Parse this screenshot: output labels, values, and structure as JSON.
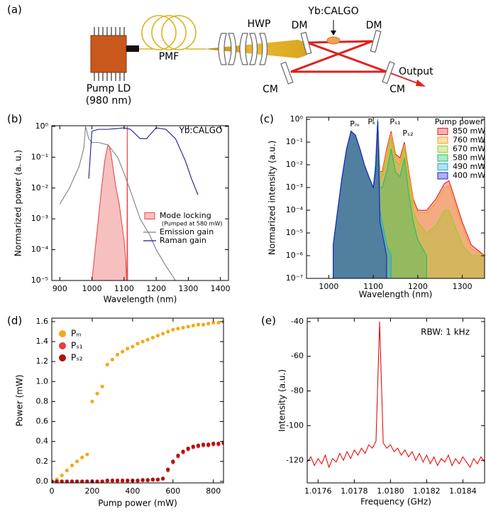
{
  "diagram": {
    "labels": [
      "(a)",
      "Pump LD",
      "(980 nm)",
      "PMF",
      "HWP",
      "DM",
      "Yb:CALGO",
      "DM",
      "CM",
      "CM",
      "Output"
    ]
  },
  "chart_data": [
    {
      "type": "line",
      "label": "(b)",
      "x_label": "Wavelength (nm)",
      "y_label": "Normarized power (a. u.)",
      "ylog": true,
      "xlim": [
        875,
        1425
      ],
      "ylim": [
        1e-05,
        1.05
      ],
      "xticks": [
        900,
        1000,
        1100,
        1200,
        1300,
        1400
      ],
      "yticks": [
        {
          "value": 1e-05,
          "label": "10⁻⁵"
        },
        {
          "value": 0.0001,
          "label": "10⁻⁴"
        },
        {
          "value": 0.001,
          "label": "10⁻³"
        },
        {
          "value": 0.01,
          "label": "10⁻²"
        },
        {
          "value": 0.1,
          "label": "10⁻¹"
        },
        {
          "value": 1,
          "label": "10⁰"
        }
      ],
      "annotations": [
        "Yb:CALGO"
      ],
      "series": [
        {
          "name": "Mode locking",
          "note": "(Pumped at 580 mW)",
          "style": "area",
          "color": "#e84a4a",
          "x": [
            1000,
            1010,
            1020,
            1030,
            1040,
            1050,
            1055,
            1060,
            1065,
            1075,
            1085,
            1095,
            1100,
            1105,
            1108,
            1109,
            1110,
            1111,
            1112
          ],
          "values": [
            1e-05,
            0.0001,
            0.001,
            0.01,
            0.08,
            0.25,
            0.22,
            0.12,
            0.05,
            0.01,
            0.003,
            0.0005,
            0.0002,
            5e-05,
            1e-05,
            1e-05,
            1,
            1e-05,
            1e-05
          ]
        },
        {
          "name": "Emission gain",
          "style": "line",
          "color": "#808080",
          "x": [
            900,
            930,
            960,
            975,
            980,
            990,
            1000,
            1020,
            1050,
            1080,
            1100,
            1120,
            1150,
            1180,
            1200,
            1230,
            1260
          ],
          "values": [
            0.003,
            0.01,
            0.05,
            0.2,
            1,
            0.4,
            0.3,
            0.3,
            0.25,
            0.1,
            0.03,
            0.008,
            0.001,
            0.0003,
            0.0001,
            3e-05,
            1e-05
          ]
        },
        {
          "name": "Raman gain",
          "style": "line",
          "color": "#1a1a9c",
          "x": [
            990,
            1000,
            1020,
            1050,
            1080,
            1100,
            1120,
            1150,
            1170,
            1200,
            1230,
            1260,
            1290,
            1310,
            1330
          ],
          "values": [
            0.02,
            0.7,
            0.8,
            0.8,
            0.85,
            0.9,
            0.8,
            0.4,
            0.4,
            0.9,
            0.8,
            0.4,
            0.08,
            0.02,
            0.006
          ]
        }
      ]
    },
    {
      "type": "area",
      "label": "(c)",
      "x_label": "Wavelength (nm)",
      "y_label": "Normarized intensity (a.u.)",
      "ylog": true,
      "xlim": [
        950,
        1350
      ],
      "ylim": [
        1e-07,
        1.25
      ],
      "xticks": [
        1000,
        1100,
        1200,
        1300
      ],
      "yticks": [
        {
          "value": 1e-07,
          "label": "10⁻⁷"
        },
        {
          "value": 1e-06,
          "label": "10⁻⁶"
        },
        {
          "value": 1e-05,
          "label": "10⁻⁵"
        },
        {
          "value": 0.0001,
          "label": "10⁻⁴"
        },
        {
          "value": 0.001,
          "label": "10⁻³"
        },
        {
          "value": 0.01,
          "label": "10⁻²"
        },
        {
          "value": 0.1,
          "label": "10⁻¹"
        },
        {
          "value": 1,
          "label": "10⁰"
        }
      ],
      "annotations": [
        "Pₘ",
        "Pₖ",
        "Pₛ₁",
        "Pₛ₂"
      ],
      "legend_title": "Pump power",
      "x": [
        1010,
        1020,
        1030,
        1040,
        1050,
        1060,
        1070,
        1080,
        1090,
        1100,
        1105,
        1110,
        1115,
        1120,
        1130,
        1140,
        1150,
        1160,
        1170,
        1180,
        1190,
        1200,
        1220,
        1240,
        1260,
        1270,
        1280,
        1300,
        1320,
        1350
      ],
      "series": [
        {
          "name": "850 mW",
          "color": "#e0202a",
          "values": [
            3e-06,
            0.0001,
            0.003,
            0.05,
            0.3,
            0.2,
            0.05,
            0.01,
            0.003,
            0.001,
            0.01,
            1,
            0.005,
            0.005,
            0.05,
            0.3,
            0.03,
            0.02,
            0.1,
            0.005,
            0.0003,
            0.0001,
            0.0001,
            0.0003,
            0.0015,
            0.002,
            0.0005,
            3e-05,
            3e-06,
            1e-06
          ]
        },
        {
          "name": "760 mW",
          "color": "#f5a020",
          "values": [
            3e-06,
            0.0001,
            0.003,
            0.05,
            0.3,
            0.2,
            0.05,
            0.01,
            0.003,
            0.001,
            0.01,
            1,
            0.004,
            0.004,
            0.04,
            0.25,
            0.025,
            0.015,
            0.08,
            0.004,
            0.00025,
            8e-05,
            8e-05,
            0.0002,
            0.001,
            0.0012,
            0.0003,
            2e-05,
            2e-06,
            1e-06
          ]
        },
        {
          "name": "670 mW",
          "color": "#9ccc20",
          "values": [
            3e-06,
            0.0001,
            0.003,
            0.05,
            0.3,
            0.2,
            0.05,
            0.01,
            0.003,
            0.001,
            0.01,
            1,
            0.003,
            0.003,
            0.02,
            0.15,
            0.015,
            0.01,
            0.05,
            0.002,
            0.0001,
            3e-05,
            1e-05,
            2e-05,
            0.0001,
            0.0001,
            3e-05,
            3e-06,
            1e-06,
            1e-06
          ]
        },
        {
          "name": "580 mW",
          "color": "#20c060",
          "values": [
            3e-06,
            0.0001,
            0.003,
            0.05,
            0.3,
            0.2,
            0.05,
            0.01,
            0.003,
            0.001,
            0.01,
            1,
            0.001,
            0.001,
            0.005,
            0.05,
            0.005,
            0.003,
            0.02,
            0.0005,
            3e-05,
            5e-06,
            1e-06,
            null,
            null,
            null,
            null,
            null,
            null,
            null
          ]
        },
        {
          "name": "490 mW",
          "color": "#20a8d8",
          "values": [
            3e-06,
            0.0001,
            0.003,
            0.05,
            0.3,
            0.2,
            0.05,
            0.01,
            0.003,
            0.001,
            0.008,
            0.9,
            0.0001,
            3e-05,
            3e-06,
            1e-06,
            null,
            null,
            null,
            null,
            null,
            null,
            null,
            null,
            null,
            null,
            null,
            null,
            null,
            null
          ]
        },
        {
          "name": "400 mW",
          "color": "#1f1fc8",
          "values": [
            3e-06,
            0.0001,
            0.003,
            0.05,
            0.3,
            0.2,
            0.05,
            0.01,
            0.003,
            0.001,
            0.005,
            0.8,
            3e-05,
            1e-05,
            1e-06,
            null,
            null,
            null,
            null,
            null,
            null,
            null,
            null,
            null,
            null,
            null,
            null,
            null,
            null,
            null
          ]
        }
      ]
    },
    {
      "type": "scatter",
      "label": "(d)",
      "x_label": "Pump power (mW)",
      "y_label": "Power (mW)",
      "ylog": false,
      "xlim": [
        0,
        850
      ],
      "ylim": [
        -0.015,
        1.635
      ],
      "xticks": [
        0,
        200,
        400,
        600,
        800
      ],
      "yticks": [
        {
          "value": 0,
          "label": "0.0"
        },
        0.2,
        0.4,
        0.6,
        0.8,
        {
          "value": 1,
          "label": "1.0"
        },
        1.2,
        1.4,
        1.6
      ],
      "x": [
        0,
        25,
        50,
        75,
        100,
        125,
        150,
        175,
        200,
        225,
        250,
        275,
        300,
        325,
        350,
        375,
        400,
        425,
        450,
        475,
        500,
        525,
        550,
        575,
        600,
        625,
        650,
        675,
        700,
        725,
        750,
        775,
        800,
        825,
        850
      ],
      "series": [
        {
          "name": "Pₘ",
          "color": "#f5a818",
          "values": [
            0,
            0.02,
            0.06,
            0.11,
            0.16,
            0.2,
            0.24,
            0.27,
            0.8,
            0.88,
            0.95,
            1.17,
            1.22,
            1.27,
            1.3,
            1.33,
            1.35,
            1.38,
            1.4,
            1.42,
            1.44,
            1.46,
            1.48,
            1.5,
            1.52,
            1.53,
            1.54,
            1.55,
            1.56,
            1.57,
            1.57,
            1.58,
            1.59,
            1.59,
            1.6
          ]
        },
        {
          "name": "Pₛ₁",
          "color": "#ee3b3b",
          "values": [
            0,
            0,
            0,
            0,
            0,
            0,
            0,
            0,
            0,
            0,
            0,
            0.005,
            0.005,
            0.005,
            0.005,
            0.005,
            0.005,
            0.005,
            0.01,
            0.01,
            0.015,
            0.015,
            0.025,
            0.11,
            0.19,
            0.25,
            0.29,
            0.32,
            0.34,
            0.35,
            0.36,
            0.36,
            0.37,
            0.37,
            0.38
          ]
        },
        {
          "name": "Pₛ₂",
          "color": "#b01010",
          "values": [
            0,
            0,
            0,
            0,
            0,
            0,
            0,
            0,
            0,
            0,
            0,
            0.01,
            0.01,
            0.01,
            0.01,
            0.01,
            0.01,
            0.01,
            0.015,
            0.015,
            0.02,
            0.02,
            0.03,
            0.12,
            0.2,
            0.26,
            0.3,
            0.33,
            0.35,
            0.36,
            0.37,
            0.37,
            0.38,
            0.38,
            0.39
          ]
        }
      ]
    },
    {
      "type": "line",
      "label": "(e)",
      "x_label": "Frequency (GHz)",
      "y_label": "Intensity (a.u.)",
      "ylog": false,
      "xlim": [
        1.01754,
        1.01852
      ],
      "ylim": [
        -133,
        -38
      ],
      "xticks": [
        1.0176,
        1.0178,
        {
          "value": 1.018,
          "label": "1.0180"
        },
        1.0182,
        1.0184
      ],
      "yticks": [
        -120,
        -100,
        -80,
        -60,
        -40
      ],
      "annotations": [
        "RBW: 1 kHz"
      ],
      "color": "#e01010",
      "x": [
        1.01754,
        1.01756,
        1.01758,
        1.0176,
        1.01762,
        1.01764,
        1.01766,
        1.01768,
        1.0177,
        1.01772,
        1.01774,
        1.01776,
        1.01778,
        1.0178,
        1.01782,
        1.01784,
        1.01786,
        1.01788,
        1.0179,
        1.01792,
        1.01794,
        1.01796,
        1.01798,
        1.018,
        1.01802,
        1.01804,
        1.01806,
        1.01808,
        1.0181,
        1.01812,
        1.01814,
        1.01816,
        1.01818,
        1.0182,
        1.01822,
        1.01824,
        1.01826,
        1.01828,
        1.0183,
        1.01832,
        1.01834,
        1.01836,
        1.01838,
        1.0184,
        1.01842,
        1.01844,
        1.01846,
        1.01848,
        1.0185,
        1.01852
      ],
      "values": [
        -121,
        -118,
        -123,
        -119,
        -122,
        -117,
        -124,
        -119,
        -121,
        -116,
        -120,
        -115,
        -119,
        -114,
        -117,
        -113,
        -116,
        -111,
        -113,
        -109,
        -40,
        -110,
        -113,
        -111,
        -115,
        -113,
        -117,
        -114,
        -118,
        -115,
        -120,
        -116,
        -121,
        -117,
        -122,
        -118,
        -123,
        -119,
        -121,
        -117,
        -123,
        -119,
        -122,
        -118,
        -121,
        -124,
        -119,
        -122,
        -118,
        -121
      ]
    }
  ]
}
